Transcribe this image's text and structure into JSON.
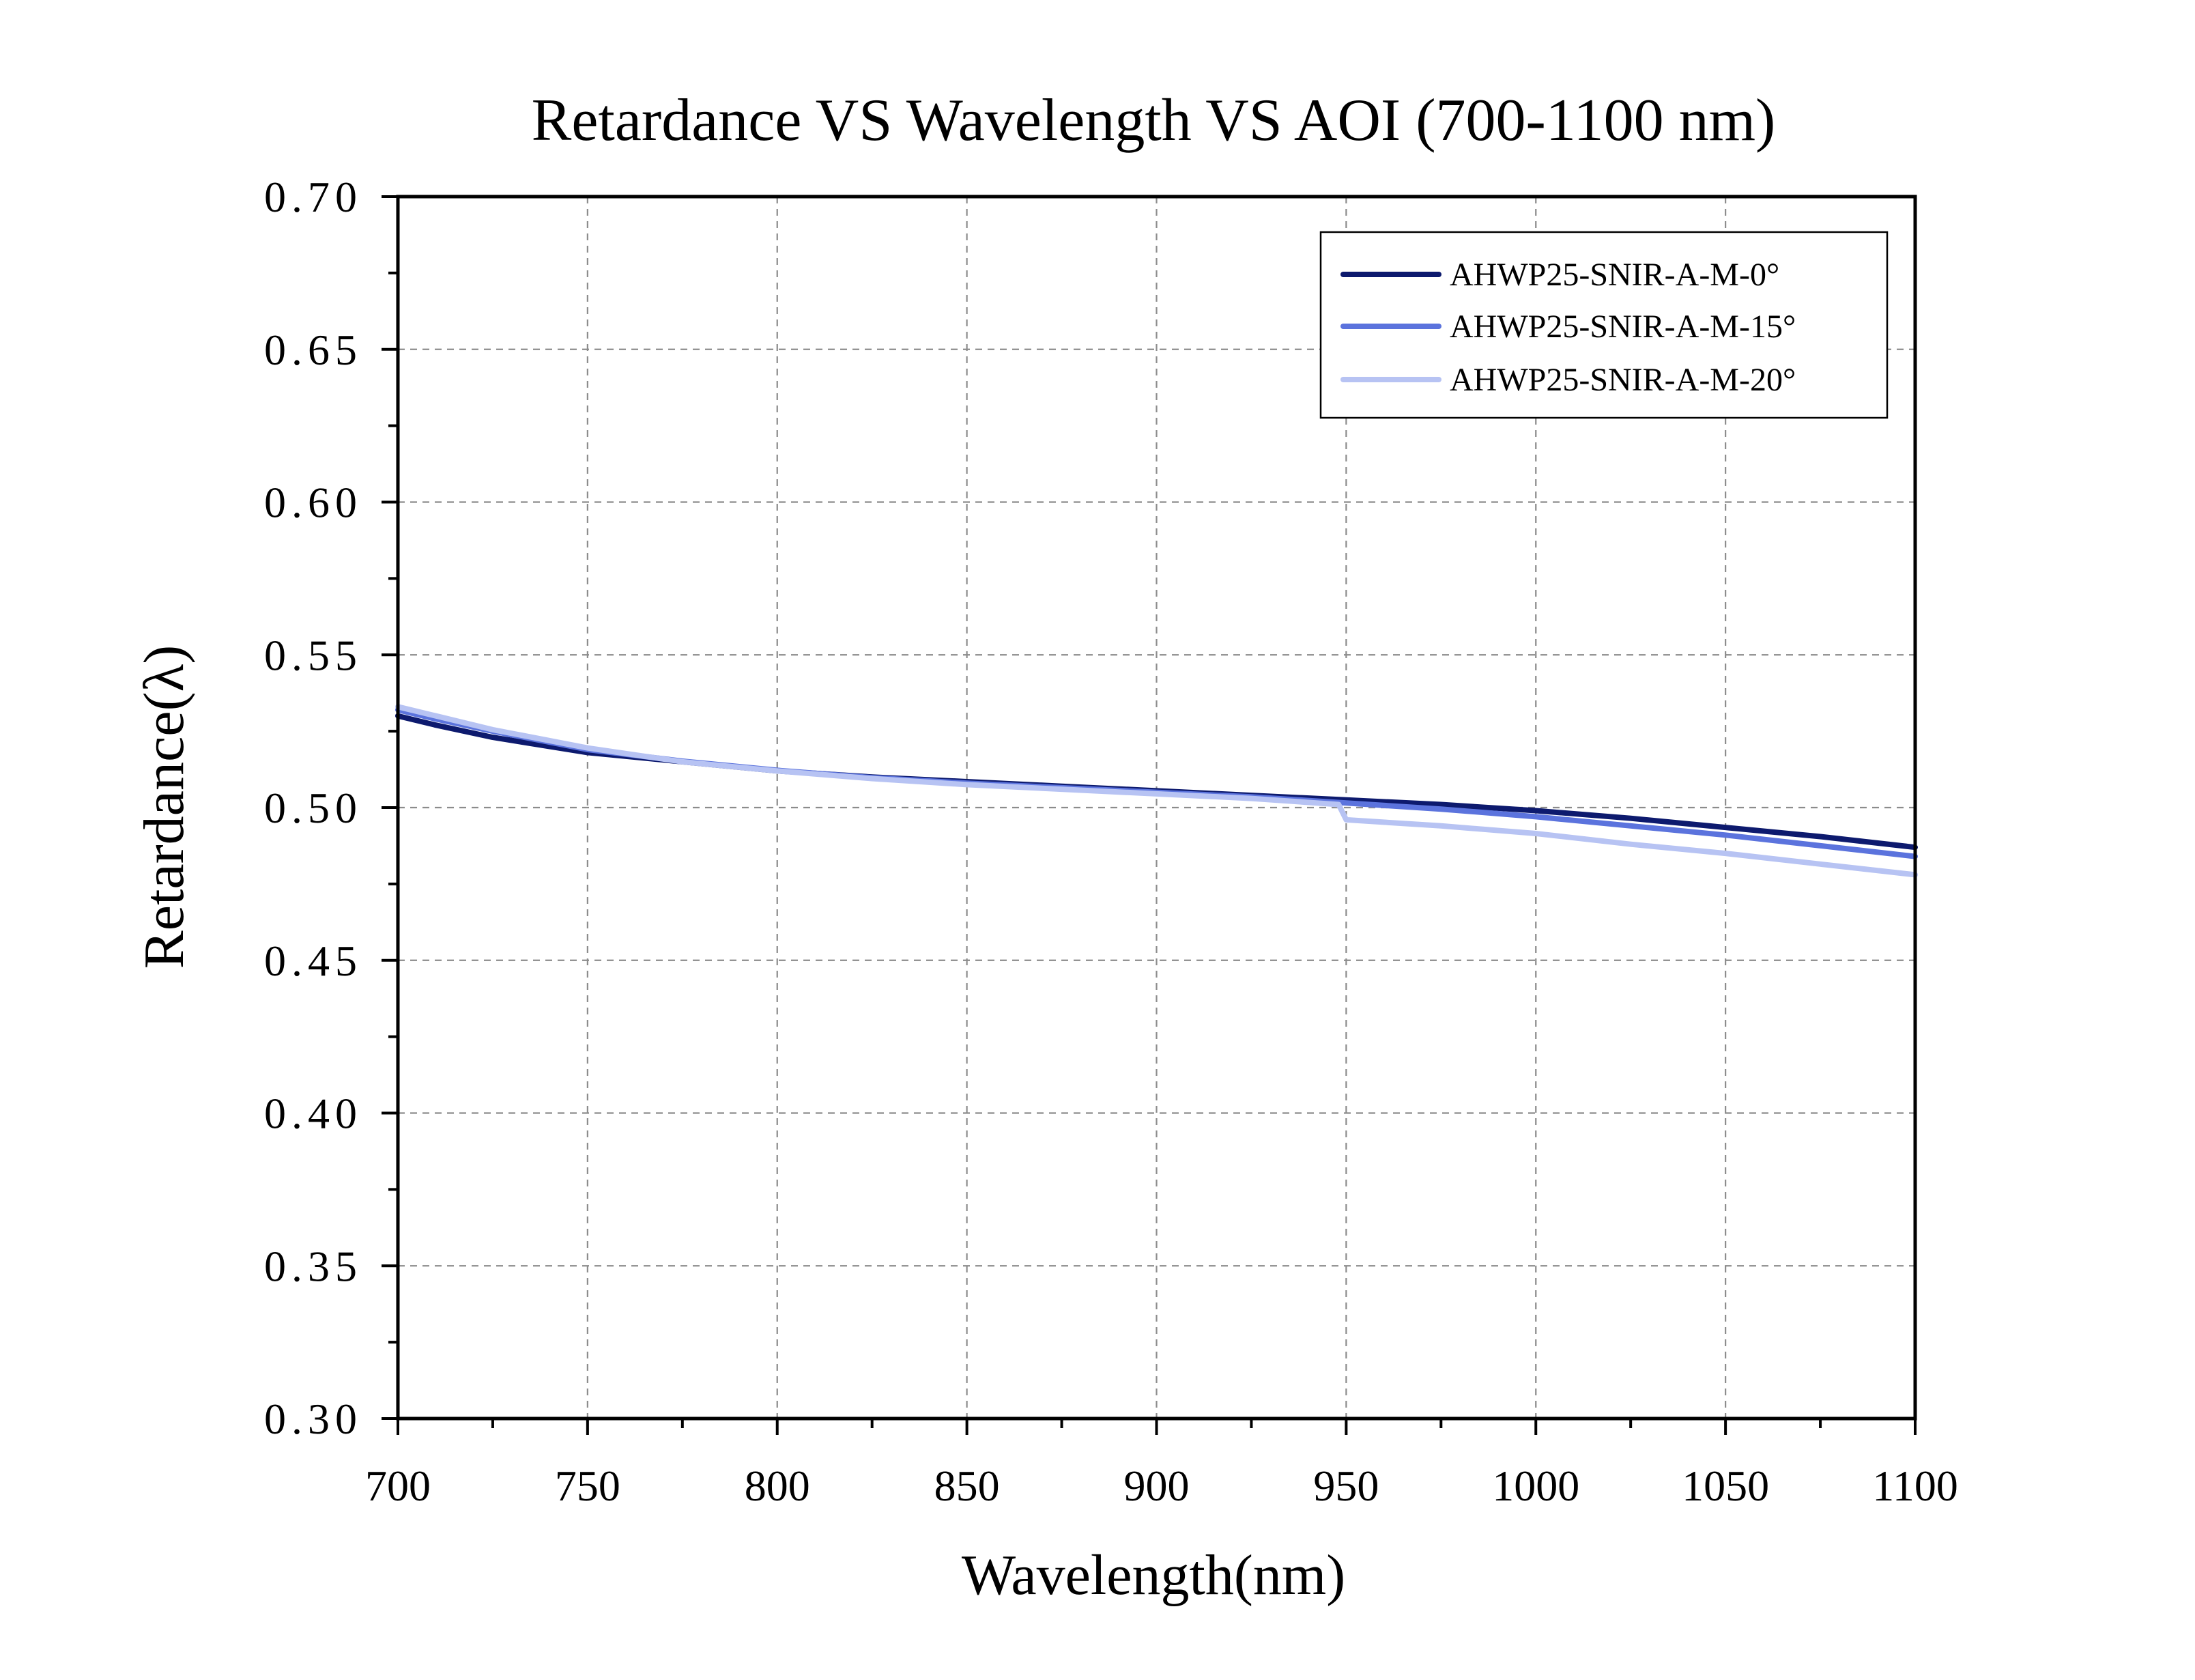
{
  "chart_data": {
    "type": "line",
    "title": "Retardance VS Wavelength VS AOI (700-1100 nm)",
    "xlabel": "Wavelength(nm)",
    "ylabel": "Retardance(λ)",
    "xlim": [
      700,
      1100
    ],
    "ylim": [
      0.3,
      0.7
    ],
    "x_ticks": [
      700,
      750,
      800,
      850,
      900,
      950,
      1000,
      1050,
      1100
    ],
    "x_tick_labels": [
      "700",
      "750",
      "800",
      "850",
      "900",
      "950",
      "1000",
      "1050",
      "1100"
    ],
    "y_ticks": [
      0.3,
      0.35,
      0.4,
      0.45,
      0.5,
      0.55,
      0.6,
      0.65,
      0.7
    ],
    "y_tick_labels": [
      "0.30",
      "0.35",
      "0.40",
      "0.45",
      "0.50",
      "0.55",
      "0.60",
      "0.65",
      "0.70"
    ],
    "grid": true,
    "legend_position": "top-right",
    "series": [
      {
        "name": "AHWP25-SNIR-A-M-0°",
        "color": "#0d1a6e",
        "x": [
          700,
          710,
          725,
          750,
          775,
          800,
          825,
          850,
          875,
          900,
          925,
          950,
          975,
          1000,
          1025,
          1050,
          1075,
          1100
        ],
        "y": [
          0.53,
          0.527,
          0.523,
          0.518,
          0.515,
          0.512,
          0.51,
          0.5085,
          0.507,
          0.5055,
          0.504,
          0.5025,
          0.501,
          0.499,
          0.4965,
          0.4935,
          0.4905,
          0.487
        ]
      },
      {
        "name": "AHWP25-SNIR-A-M-15°",
        "color": "#5b73dd",
        "x": [
          700,
          710,
          725,
          750,
          775,
          800,
          825,
          850,
          875,
          900,
          925,
          950,
          975,
          1000,
          1025,
          1050,
          1075,
          1100
        ],
        "y": [
          0.532,
          0.529,
          0.525,
          0.519,
          0.5152,
          0.5122,
          0.5098,
          0.508,
          0.5065,
          0.505,
          0.5035,
          0.5015,
          0.4995,
          0.497,
          0.494,
          0.491,
          0.4875,
          0.484
        ]
      },
      {
        "name": "AHWP25-SNIR-A-M-20°",
        "color": "#b7c3f3",
        "x": [
          700,
          710,
          725,
          750,
          775,
          800,
          825,
          850,
          875,
          900,
          925,
          948,
          950,
          975,
          1000,
          1025,
          1050,
          1075,
          1100
        ],
        "y": [
          0.533,
          0.53,
          0.5255,
          0.5195,
          0.515,
          0.512,
          0.5095,
          0.5075,
          0.506,
          0.5045,
          0.503,
          0.501,
          0.496,
          0.494,
          0.4915,
          0.488,
          0.485,
          0.4815,
          0.478
        ]
      }
    ]
  }
}
